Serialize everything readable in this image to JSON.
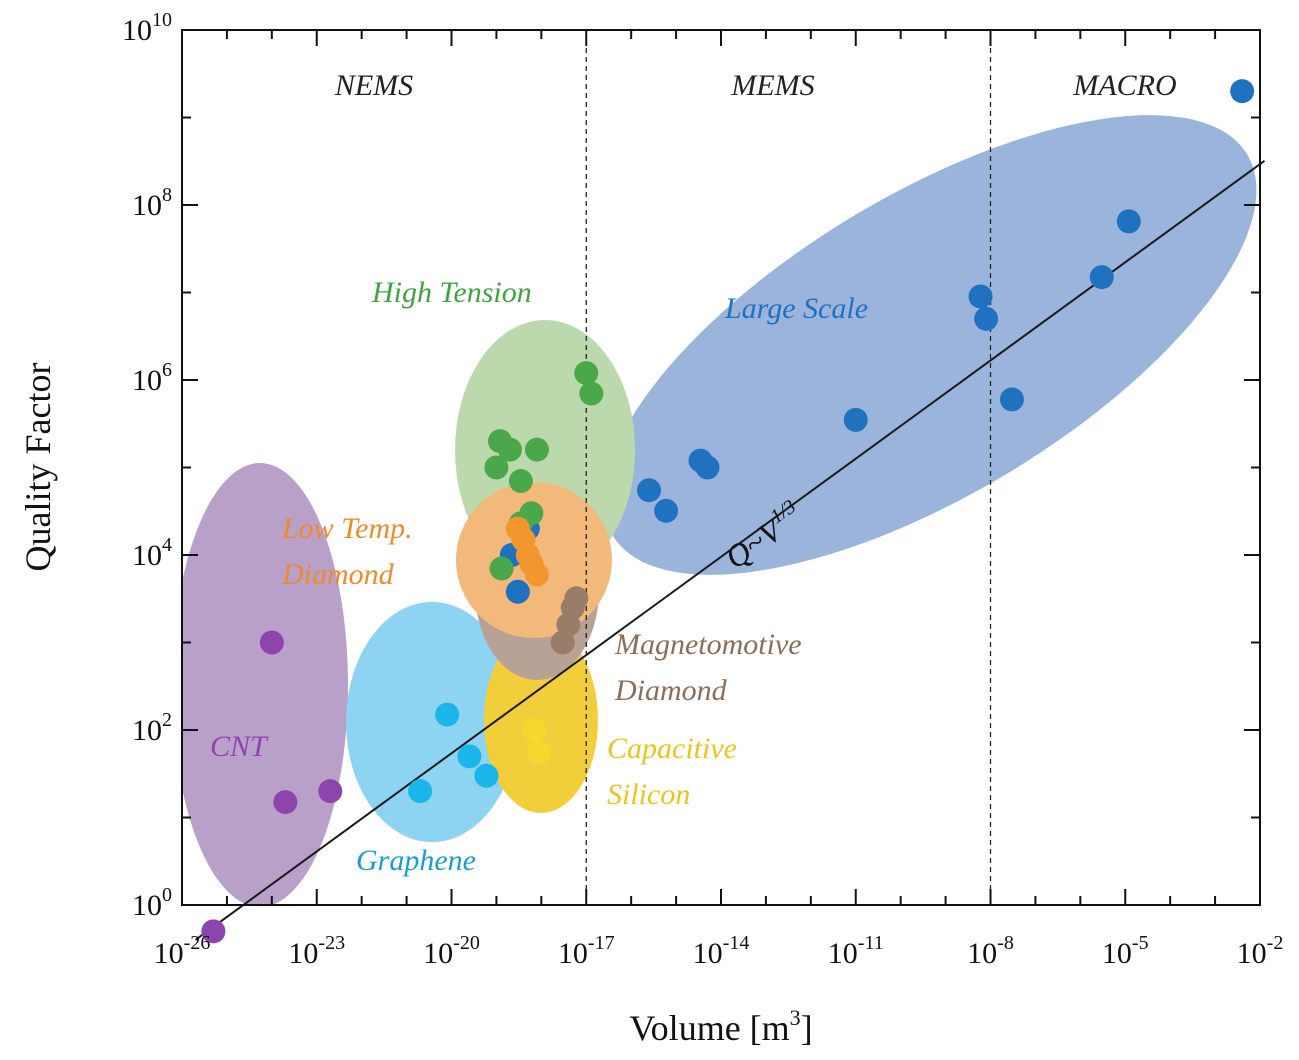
{
  "chart_data": {
    "type": "scatter",
    "title": "",
    "xlabel": "Volume [m",
    "xlabel_sup": "3",
    "xlabel_end": "]",
    "ylabel": "Quality Factor",
    "x_scale": "log",
    "y_scale": "log",
    "xlim": [
      1e-26,
      0.01
    ],
    "ylim": [
      1,
      10000000000.0
    ],
    "x_ticks": [
      {
        "base": "10",
        "exp": "-26",
        "value": 1e-26
      },
      {
        "base": "10",
        "exp": "-23",
        "value": 1e-23
      },
      {
        "base": "10",
        "exp": "-20",
        "value": 1e-20
      },
      {
        "base": "10",
        "exp": "-17",
        "value": 1e-17
      },
      {
        "base": "10",
        "exp": "-14",
        "value": 1e-14
      },
      {
        "base": "10",
        "exp": "-11",
        "value": 1e-11
      },
      {
        "base": "10",
        "exp": "-8",
        "value": 1e-08
      },
      {
        "base": "10",
        "exp": "-5",
        "value": 1e-05
      },
      {
        "base": "10",
        "exp": "-2",
        "value": 0.01
      }
    ],
    "y_ticks": [
      {
        "base": "10",
        "exp": "0",
        "value": 1
      },
      {
        "base": "10",
        "exp": "2",
        "value": 100
      },
      {
        "base": "10",
        "exp": "4",
        "value": 10000.0
      },
      {
        "base": "10",
        "exp": "6",
        "value": 1000000.0
      },
      {
        "base": "10",
        "exp": "8",
        "value": 100000000.0
      },
      {
        "base": "10",
        "exp": "10",
        "value": 10000000000.0
      }
    ],
    "region_boundaries": [
      1e-17,
      1e-08
    ],
    "regions": [
      "NEMS",
      "MEMS",
      "MACRO"
    ],
    "fit_line": {
      "label": "Q~V",
      "label_exp": "1/3",
      "x": [
        2e-26,
        0.0126
      ],
      "y": [
        0.4,
        320000000.0
      ]
    },
    "groups": [
      {
        "name": "CNT",
        "color": "#8e44ad",
        "fill": "#b9a0c9",
        "points": [
          [
            5e-26,
            0.5
          ],
          [
            1e-24,
            1000
          ],
          [
            2e-24,
            15
          ],
          [
            2e-23,
            20
          ]
        ]
      },
      {
        "name": "Graphene",
        "color": "#1ab5ea",
        "fill": "#8dd3f2",
        "points": [
          [
            2e-21,
            20
          ],
          [
            8e-21,
            150
          ],
          [
            2.5e-20,
            50
          ],
          [
            6e-20,
            30
          ]
        ]
      },
      {
        "name": "Capacitive Silicon",
        "color": "#f7d62e",
        "fill": "#f2cf3a",
        "points": [
          [
            7e-19,
            100
          ],
          [
            9e-19,
            55
          ]
        ]
      },
      {
        "name": "Magnetomotive Diamond",
        "color": "#9a7d68",
        "fill": "#b7a295",
        "points": [
          [
            3e-18,
            1000
          ],
          [
            4e-18,
            1600
          ],
          [
            5e-18,
            2500
          ],
          [
            6e-18,
            3200
          ]
        ]
      },
      {
        "name": "Low Temp. Diamond",
        "color": "#f2962e",
        "fill": "#f2b97b",
        "points": [
          [
            4e-19,
            15000
          ],
          [
            5e-19,
            10000
          ],
          [
            6e-19,
            8000
          ],
          [
            8e-19,
            6000
          ],
          [
            3e-19,
            20000
          ]
        ]
      },
      {
        "name": "High Tension",
        "color": "#4aa84a",
        "fill": "#bcd9ae",
        "points": [
          [
            1.2e-19,
            200000.0
          ],
          [
            2e-19,
            160000.0
          ],
          [
            1e-19,
            100000.0
          ],
          [
            3.5e-19,
            70000.0
          ],
          [
            8e-19,
            160000.0
          ],
          [
            6e-19,
            30000.0
          ],
          [
            3.5e-19,
            23000.0
          ],
          [
            1.3e-19,
            7000
          ],
          [
            1e-17,
            1200000.0
          ],
          [
            1.3e-17,
            700000.0
          ]
        ]
      },
      {
        "name": "Large Scale",
        "color": "#1f72c0",
        "fill": "#9ab4dc",
        "points": [
          [
            3e-19,
            3800
          ],
          [
            2.2e-19,
            10000
          ],
          [
            5e-19,
            20000
          ],
          [
            2.5e-16,
            55000.0
          ],
          [
            6e-16,
            32000.0
          ],
          [
            3.5e-15,
            120000.0
          ],
          [
            5e-15,
            100000.0
          ],
          [
            1e-11,
            350000.0
          ],
          [
            6e-09,
            9000000.0
          ],
          [
            8e-09,
            5000000.0
          ],
          [
            3e-08,
            600000.0
          ],
          [
            3e-06,
            15000000.0
          ],
          [
            1.2e-05,
            65000000.0
          ],
          [
            0.004,
            2000000000.0
          ]
        ]
      }
    ]
  }
}
